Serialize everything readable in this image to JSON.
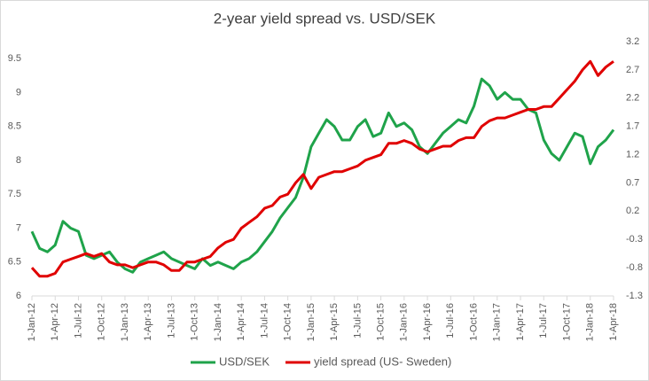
{
  "chart_data": {
    "type": "line",
    "title": "2-year yield spread vs. USD/SEK",
    "categories": [
      "1-Jan-12",
      null,
      null,
      "1-Apr-12",
      null,
      null,
      "1-Jul-12",
      null,
      null,
      "1-Oct-12",
      null,
      null,
      "1-Jan-13",
      null,
      null,
      "1-Apr-13",
      null,
      null,
      "1-Jul-13",
      null,
      null,
      "1-Oct-13",
      null,
      null,
      "1-Jan-14",
      null,
      null,
      "1-Apr-14",
      null,
      null,
      "1-Jul-14",
      null,
      null,
      "1-Oct-14",
      null,
      null,
      "1-Jan-15",
      null,
      null,
      "1-Apr-15",
      null,
      null,
      "1-Jul-15",
      null,
      null,
      "1-Oct-15",
      null,
      null,
      "1-Jan-16",
      null,
      null,
      "1-Apr-16",
      null,
      null,
      "1-Jul-16",
      null,
      null,
      "1-Oct-16",
      null,
      null,
      "1-Jan-17",
      null,
      null,
      "1-Apr-17",
      null,
      null,
      "1-Jul-17",
      null,
      null,
      "1-Oct-17",
      null,
      null,
      "1-Jan-18",
      null,
      null,
      "1-Apr-18"
    ],
    "series": [
      {
        "name": "USD/SEK",
        "color": "#1fa34a",
        "values": [
          6.95,
          6.7,
          6.65,
          6.75,
          7.1,
          7.0,
          6.95,
          6.6,
          6.55,
          6.6,
          6.65,
          6.5,
          6.4,
          6.35,
          6.5,
          6.55,
          6.6,
          6.65,
          6.55,
          6.5,
          6.45,
          6.4,
          6.55,
          6.45,
          6.5,
          6.45,
          6.4,
          6.5,
          6.55,
          6.65,
          6.8,
          6.95,
          7.15,
          7.3,
          7.45,
          7.75,
          8.2,
          8.4,
          8.6,
          8.5,
          8.3,
          8.3,
          8.5,
          8.6,
          8.35,
          8.4,
          8.7,
          8.5,
          8.55,
          8.45,
          8.2,
          8.1,
          8.25,
          8.4,
          8.5,
          8.6,
          8.55,
          8.8,
          9.2,
          9.1,
          8.9,
          9.0,
          8.9,
          8.9,
          8.75,
          8.7,
          8.3,
          8.1,
          8.0,
          8.2,
          8.4,
          8.35,
          7.95,
          8.2,
          8.3,
          8.45
        ]
      },
      {
        "name": "yield spread (US- Sweden)",
        "color": "#e00000",
        "axis": "y2",
        "values": [
          -0.8,
          -0.95,
          -0.95,
          -0.9,
          -0.7,
          -0.65,
          -0.6,
          -0.55,
          -0.6,
          -0.55,
          -0.7,
          -0.75,
          -0.75,
          -0.8,
          -0.75,
          -0.7,
          -0.7,
          -0.75,
          -0.85,
          -0.85,
          -0.7,
          -0.7,
          -0.65,
          -0.6,
          -0.45,
          -0.35,
          -0.3,
          -0.1,
          0.0,
          0.1,
          0.25,
          0.3,
          0.45,
          0.5,
          0.7,
          0.85,
          0.6,
          0.8,
          0.85,
          0.9,
          0.9,
          0.95,
          1.0,
          1.1,
          1.15,
          1.2,
          1.4,
          1.4,
          1.45,
          1.4,
          1.3,
          1.25,
          1.3,
          1.35,
          1.35,
          1.45,
          1.5,
          1.5,
          1.7,
          1.8,
          1.85,
          1.85,
          1.9,
          1.95,
          2.0,
          2.0,
          2.05,
          2.05,
          2.2,
          2.35,
          2.5,
          2.7,
          2.85,
          2.6,
          2.75,
          2.85
        ]
      }
    ],
    "ylim": [
      6,
      9.75
    ],
    "yticks": [
      6,
      6.5,
      7,
      7.5,
      8,
      8.5,
      9,
      9.5
    ],
    "y2lim": [
      -1.3,
      3.2
    ],
    "y2ticks": [
      -1.3,
      -0.8,
      -0.3,
      0.2,
      0.7,
      1.2,
      1.7,
      2.2,
      2.7,
      3.2
    ],
    "legend": "bottom"
  }
}
